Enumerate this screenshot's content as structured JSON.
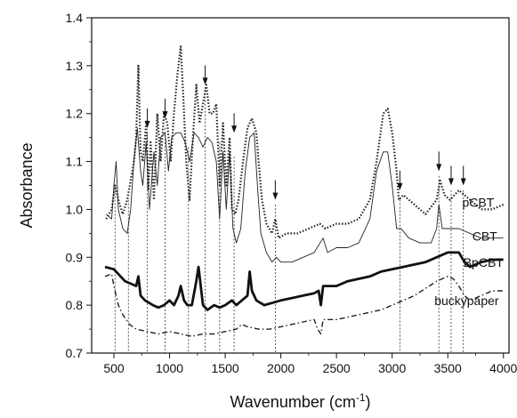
{
  "chart_data": {
    "type": "line",
    "xlabel": "Wavenumber (cm",
    "xlabel_sup": "-1",
    "xlabel_close": ")",
    "ylabel": "Absorbance",
    "xlim": [
      300,
      4050
    ],
    "ylim": [
      0.7,
      1.4
    ],
    "x_ticks": [
      500,
      1000,
      1500,
      2000,
      2500,
      3000,
      3500,
      4000
    ],
    "y_ticks": [
      0.7,
      0.8,
      0.9,
      1.0,
      1.1,
      1.2,
      1.3,
      1.4
    ],
    "series": [
      {
        "name": "pCBT",
        "style": "dotted",
        "points": [
          [
            430,
            0.98
          ],
          [
            480,
            1.0
          ],
          [
            510,
            1.05
          ],
          [
            540,
            1.02
          ],
          [
            580,
            0.99
          ],
          [
            620,
            1.02
          ],
          [
            650,
            1.06
          ],
          [
            680,
            1.1
          ],
          [
            700,
            1.15
          ],
          [
            720,
            1.3
          ],
          [
            740,
            1.12
          ],
          [
            760,
            1.1
          ],
          [
            790,
            1.18
          ],
          [
            810,
            1.04
          ],
          [
            830,
            1.14
          ],
          [
            860,
            1.02
          ],
          [
            890,
            1.2
          ],
          [
            920,
            1.1
          ],
          [
            950,
            1.2
          ],
          [
            980,
            1.18
          ],
          [
            1010,
            1.1
          ],
          [
            1040,
            1.2
          ],
          [
            1070,
            1.28
          ],
          [
            1100,
            1.34
          ],
          [
            1120,
            1.25
          ],
          [
            1150,
            1.1
          ],
          [
            1180,
            1.02
          ],
          [
            1210,
            1.15
          ],
          [
            1240,
            1.26
          ],
          [
            1270,
            1.18
          ],
          [
            1300,
            1.22
          ],
          [
            1330,
            1.26
          ],
          [
            1360,
            1.2
          ],
          [
            1390,
            1.2
          ],
          [
            1420,
            1.22
          ],
          [
            1450,
            1.05
          ],
          [
            1480,
            1.18
          ],
          [
            1510,
            1.05
          ],
          [
            1540,
            1.15
          ],
          [
            1560,
            1.0
          ],
          [
            1590,
            0.99
          ],
          [
            1620,
            1.02
          ],
          [
            1660,
            1.1
          ],
          [
            1700,
            1.17
          ],
          [
            1740,
            1.19
          ],
          [
            1780,
            1.16
          ],
          [
            1800,
            1.1
          ],
          [
            1830,
            1.02
          ],
          [
            1870,
            0.97
          ],
          [
            1920,
            0.95
          ],
          [
            1950,
            0.98
          ],
          [
            1980,
            0.94
          ],
          [
            2050,
            0.95
          ],
          [
            2150,
            0.95
          ],
          [
            2250,
            0.96
          ],
          [
            2350,
            0.97
          ],
          [
            2400,
            0.96
          ],
          [
            2500,
            0.97
          ],
          [
            2600,
            0.97
          ],
          [
            2700,
            0.98
          ],
          [
            2800,
            1.02
          ],
          [
            2860,
            1.1
          ],
          [
            2920,
            1.2
          ],
          [
            2960,
            1.21
          ],
          [
            3000,
            1.16
          ],
          [
            3040,
            1.08
          ],
          [
            3060,
            1.02
          ],
          [
            3100,
            1.03
          ],
          [
            3200,
            1.01
          ],
          [
            3300,
            0.99
          ],
          [
            3400,
            1.02
          ],
          [
            3430,
            1.06
          ],
          [
            3470,
            1.03
          ],
          [
            3520,
            1.02
          ],
          [
            3600,
            1.04
          ],
          [
            3700,
            1.02
          ],
          [
            3800,
            1.0
          ],
          [
            3900,
            1.0
          ],
          [
            4000,
            1.01
          ]
        ]
      },
      {
        "name": "CBT",
        "style": "solid-thin",
        "points": [
          [
            430,
            0.99
          ],
          [
            480,
            0.98
          ],
          [
            500,
            1.05
          ],
          [
            520,
            1.1
          ],
          [
            540,
            1.0
          ],
          [
            580,
            0.96
          ],
          [
            620,
            0.95
          ],
          [
            650,
            1.0
          ],
          [
            680,
            1.1
          ],
          [
            710,
            1.17
          ],
          [
            740,
            1.08
          ],
          [
            760,
            1.05
          ],
          [
            790,
            1.14
          ],
          [
            820,
            1.0
          ],
          [
            860,
            1.12
          ],
          [
            890,
            1.05
          ],
          [
            920,
            1.15
          ],
          [
            960,
            1.16
          ],
          [
            990,
            1.08
          ],
          [
            1020,
            1.15
          ],
          [
            1060,
            1.16
          ],
          [
            1100,
            1.16
          ],
          [
            1140,
            1.14
          ],
          [
            1180,
            1.1
          ],
          [
            1220,
            1.16
          ],
          [
            1260,
            1.15
          ],
          [
            1300,
            1.13
          ],
          [
            1340,
            1.15
          ],
          [
            1380,
            1.14
          ],
          [
            1420,
            1.1
          ],
          [
            1450,
            0.98
          ],
          [
            1480,
            1.12
          ],
          [
            1510,
            1.0
          ],
          [
            1540,
            1.12
          ],
          [
            1570,
            0.96
          ],
          [
            1600,
            0.93
          ],
          [
            1640,
            0.96
          ],
          [
            1680,
            1.08
          ],
          [
            1720,
            1.15
          ],
          [
            1760,
            1.16
          ],
          [
            1790,
            1.05
          ],
          [
            1820,
            0.95
          ],
          [
            1870,
            0.91
          ],
          [
            1920,
            0.89
          ],
          [
            1960,
            0.9
          ],
          [
            2000,
            0.89
          ],
          [
            2100,
            0.89
          ],
          [
            2200,
            0.9
          ],
          [
            2300,
            0.91
          ],
          [
            2380,
            0.94
          ],
          [
            2420,
            0.91
          ],
          [
            2500,
            0.92
          ],
          [
            2600,
            0.92
          ],
          [
            2700,
            0.93
          ],
          [
            2800,
            0.98
          ],
          [
            2860,
            1.08
          ],
          [
            2920,
            1.12
          ],
          [
            2960,
            1.12
          ],
          [
            3000,
            1.05
          ],
          [
            3040,
            0.96
          ],
          [
            3080,
            0.96
          ],
          [
            3150,
            0.94
          ],
          [
            3250,
            0.93
          ],
          [
            3350,
            0.93
          ],
          [
            3400,
            0.96
          ],
          [
            3420,
            1.01
          ],
          [
            3450,
            0.96
          ],
          [
            3500,
            0.96
          ],
          [
            3600,
            0.96
          ],
          [
            3700,
            0.95
          ],
          [
            3800,
            0.94
          ],
          [
            3900,
            0.94
          ],
          [
            4000,
            0.94
          ]
        ]
      },
      {
        "name": "BpCBT",
        "style": "solid-thick",
        "points": [
          [
            420,
            0.88
          ],
          [
            500,
            0.875
          ],
          [
            560,
            0.86
          ],
          [
            600,
            0.85
          ],
          [
            650,
            0.845
          ],
          [
            700,
            0.84
          ],
          [
            720,
            0.86
          ],
          [
            740,
            0.82
          ],
          [
            780,
            0.81
          ],
          [
            850,
            0.8
          ],
          [
            900,
            0.795
          ],
          [
            950,
            0.8
          ],
          [
            1000,
            0.81
          ],
          [
            1040,
            0.8
          ],
          [
            1080,
            0.82
          ],
          [
            1100,
            0.84
          ],
          [
            1130,
            0.81
          ],
          [
            1160,
            0.8
          ],
          [
            1200,
            0.8
          ],
          [
            1240,
            0.85
          ],
          [
            1260,
            0.88
          ],
          [
            1280,
            0.84
          ],
          [
            1300,
            0.8
          ],
          [
            1340,
            0.79
          ],
          [
            1400,
            0.8
          ],
          [
            1450,
            0.795
          ],
          [
            1500,
            0.8
          ],
          [
            1560,
            0.81
          ],
          [
            1600,
            0.8
          ],
          [
            1700,
            0.82
          ],
          [
            1720,
            0.87
          ],
          [
            1740,
            0.83
          ],
          [
            1780,
            0.81
          ],
          [
            1850,
            0.8
          ],
          [
            2000,
            0.81
          ],
          [
            2100,
            0.815
          ],
          [
            2200,
            0.82
          ],
          [
            2300,
            0.825
          ],
          [
            2340,
            0.83
          ],
          [
            2360,
            0.8
          ],
          [
            2380,
            0.84
          ],
          [
            2500,
            0.84
          ],
          [
            2600,
            0.85
          ],
          [
            2700,
            0.855
          ],
          [
            2800,
            0.86
          ],
          [
            2900,
            0.87
          ],
          [
            3000,
            0.875
          ],
          [
            3100,
            0.88
          ],
          [
            3200,
            0.885
          ],
          [
            3300,
            0.89
          ],
          [
            3400,
            0.9
          ],
          [
            3500,
            0.91
          ],
          [
            3600,
            0.91
          ],
          [
            3650,
            0.89
          ],
          [
            3700,
            0.88
          ],
          [
            3800,
            0.89
          ],
          [
            3900,
            0.895
          ],
          [
            4000,
            0.895
          ]
        ]
      },
      {
        "name": "buckypaper",
        "style": "dash-dot",
        "points": [
          [
            420,
            0.86
          ],
          [
            480,
            0.865
          ],
          [
            500,
            0.84
          ],
          [
            540,
            0.8
          ],
          [
            580,
            0.78
          ],
          [
            640,
            0.76
          ],
          [
            700,
            0.75
          ],
          [
            800,
            0.745
          ],
          [
            900,
            0.74
          ],
          [
            1000,
            0.745
          ],
          [
            1100,
            0.74
          ],
          [
            1200,
            0.735
          ],
          [
            1300,
            0.74
          ],
          [
            1400,
            0.74
          ],
          [
            1500,
            0.745
          ],
          [
            1600,
            0.75
          ],
          [
            1650,
            0.76
          ],
          [
            1700,
            0.755
          ],
          [
            1800,
            0.75
          ],
          [
            1900,
            0.75
          ],
          [
            2000,
            0.755
          ],
          [
            2100,
            0.76
          ],
          [
            2200,
            0.765
          ],
          [
            2300,
            0.77
          ],
          [
            2330,
            0.75
          ],
          [
            2360,
            0.74
          ],
          [
            2380,
            0.77
          ],
          [
            2500,
            0.77
          ],
          [
            2600,
            0.775
          ],
          [
            2700,
            0.78
          ],
          [
            2800,
            0.785
          ],
          [
            2900,
            0.79
          ],
          [
            3000,
            0.8
          ],
          [
            3100,
            0.81
          ],
          [
            3200,
            0.82
          ],
          [
            3300,
            0.835
          ],
          [
            3400,
            0.85
          ],
          [
            3500,
            0.86
          ],
          [
            3550,
            0.855
          ],
          [
            3600,
            0.84
          ],
          [
            3650,
            0.82
          ],
          [
            3700,
            0.81
          ],
          [
            3800,
            0.82
          ],
          [
            3900,
            0.83
          ],
          [
            4000,
            0.83
          ]
        ]
      }
    ],
    "reference_lines": [
      {
        "x": 510,
        "y_top": 1.05
      },
      {
        "x": 630,
        "y_top": 1.02
      },
      {
        "x": 800,
        "y_top": 1.16
      },
      {
        "x": 960,
        "y_top": 1.17
      },
      {
        "x": 1170,
        "y_top": 1.13
      },
      {
        "x": 1320,
        "y_top": 1.25
      },
      {
        "x": 1450,
        "y_top": 1.14
      },
      {
        "x": 1580,
        "y_top": 1.11
      },
      {
        "x": 1950,
        "y_top": 1.01
      },
      {
        "x": 3070,
        "y_top": 1.02
      },
      {
        "x": 3420,
        "y_top": 1.07
      },
      {
        "x": 3530,
        "y_top": 1.04
      },
      {
        "x": 3640,
        "y_top": 1.04
      }
    ],
    "arrows": [
      {
        "x": 800,
        "y_tip": 1.17
      },
      {
        "x": 960,
        "y_tip": 1.19
      },
      {
        "x": 1320,
        "y_tip": 1.26
      },
      {
        "x": 1580,
        "y_tip": 1.16
      },
      {
        "x": 1950,
        "y_tip": 1.02
      },
      {
        "x": 3070,
        "y_tip": 1.04
      },
      {
        "x": 3420,
        "y_tip": 1.08
      },
      {
        "x": 3530,
        "y_tip": 1.05
      },
      {
        "x": 3640,
        "y_tip": 1.05
      }
    ],
    "grid": false,
    "legend_placement": "inline labels at right end of each curve"
  },
  "series_labels": {
    "pCBT": "pCBT",
    "CBT": "CBT",
    "BpCBT": "BpCBT",
    "buckypaper": "buckypaper"
  }
}
